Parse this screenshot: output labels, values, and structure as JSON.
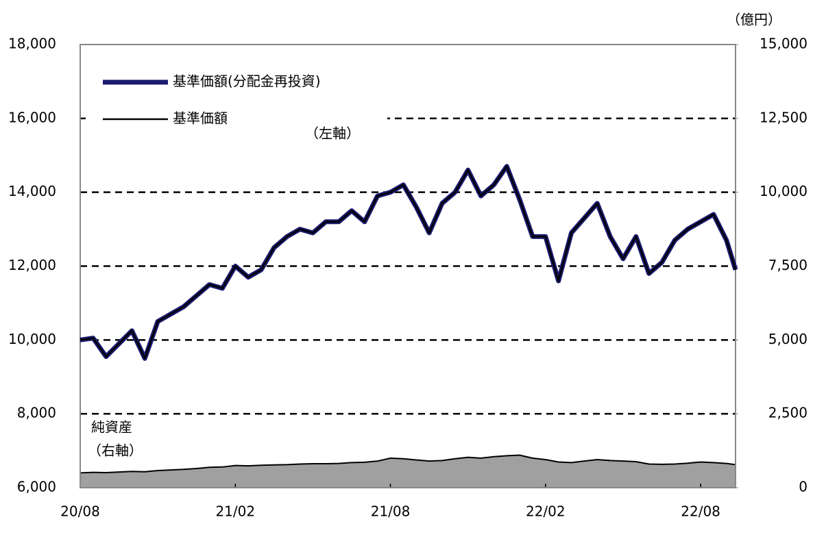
{
  "chart_data": {
    "type": "line",
    "y2_label": "（億円）",
    "x": [
      0,
      0.5,
      1,
      1.5,
      2,
      2.5,
      3,
      3.5,
      4,
      4.5,
      5,
      5.5,
      6,
      6.5,
      7,
      7.5,
      8,
      8.5,
      9,
      9.5,
      10,
      10.5,
      11,
      11.5,
      12,
      12.5,
      13,
      13.5,
      14,
      14.5,
      15,
      15.5,
      16,
      16.5,
      17,
      17.5,
      18,
      18.5,
      19,
      19.5,
      20,
      20.5,
      21,
      21.5,
      22,
      22.5,
      23,
      23.5,
      24,
      24.5,
      25,
      25.35
    ],
    "xlim": [
      0,
      25.35
    ],
    "xticks": [
      {
        "value": 0,
        "label": "20/08"
      },
      {
        "value": 6,
        "label": "21/02"
      },
      {
        "value": 12,
        "label": "21/08"
      },
      {
        "value": 18,
        "label": "22/02"
      },
      {
        "value": 24,
        "label": "22/08"
      }
    ],
    "ylim": [
      6000,
      18000
    ],
    "yticks": [
      {
        "value": 6000,
        "label": "6,000"
      },
      {
        "value": 8000,
        "label": "8,000"
      },
      {
        "value": 10000,
        "label": "10,000"
      },
      {
        "value": 12000,
        "label": "12,000"
      },
      {
        "value": 14000,
        "label": "14,000"
      },
      {
        "value": 16000,
        "label": "16,000"
      },
      {
        "value": 18000,
        "label": "18,000"
      }
    ],
    "y2lim": [
      0,
      15000
    ],
    "y2ticks": [
      0,
      {
        "value": 2500,
        "label": "2,500"
      },
      {
        "value": 5000,
        "label": "5,000"
      },
      {
        "value": 7500,
        "label": "7,500"
      },
      {
        "value": 10000,
        "label": "10,000"
      },
      {
        "value": 12500,
        "label": "12,500"
      },
      {
        "value": 15000,
        "label": "15,000"
      }
    ],
    "grid": true,
    "series": [
      {
        "name": "基準価額(分配金再投資)",
        "color": "#1a1a6e",
        "type": "line",
        "values": [
          10000,
          10050,
          9550,
          9900,
          10250,
          9500,
          10500,
          10700,
          10900,
          11200,
          11500,
          11400,
          12000,
          11700,
          11900,
          12500,
          12800,
          13000,
          12900,
          13200,
          13200,
          13500,
          13200,
          13900,
          14000,
          14200,
          13600,
          12900,
          13700,
          14000,
          14600,
          13900,
          14200,
          14700,
          13800,
          12800,
          12800,
          11600,
          12900,
          13300,
          13700,
          12800,
          12200,
          12800,
          11800,
          12100,
          12700,
          13000,
          13200,
          13400,
          12700,
          11900
        ]
      },
      {
        "name": "基準価額",
        "color": "#000000",
        "type": "line",
        "values": [
          10000,
          10050,
          9550,
          9900,
          10250,
          9500,
          10500,
          10700,
          10900,
          11200,
          11500,
          11400,
          12000,
          11700,
          11900,
          12500,
          12800,
          13000,
          12900,
          13200,
          13200,
          13500,
          13200,
          13900,
          14000,
          14200,
          13600,
          12900,
          13700,
          14000,
          14600,
          13900,
          14200,
          14700,
          13800,
          12800,
          12800,
          11600,
          12900,
          13300,
          13700,
          12800,
          12200,
          12800,
          11800,
          12100,
          12700,
          13000,
          13200,
          13400,
          12700,
          11900
        ]
      },
      {
        "name": "純資産",
        "color": "#a0a0a0",
        "type": "area",
        "axis": "y2",
        "values": [
          500,
          520,
          510,
          530,
          550,
          540,
          580,
          600,
          620,
          650,
          690,
          700,
          750,
          740,
          760,
          770,
          780,
          800,
          810,
          810,
          820,
          850,
          860,
          900,
          1000,
          980,
          940,
          900,
          920,
          980,
          1030,
          1000,
          1050,
          1080,
          1100,
          1000,
          950,
          870,
          850,
          900,
          950,
          920,
          900,
          880,
          800,
          790,
          800,
          830,
          870,
          850,
          820,
          780
        ]
      }
    ],
    "annotations": [
      "（左軸）",
      "（右軸）"
    ]
  }
}
